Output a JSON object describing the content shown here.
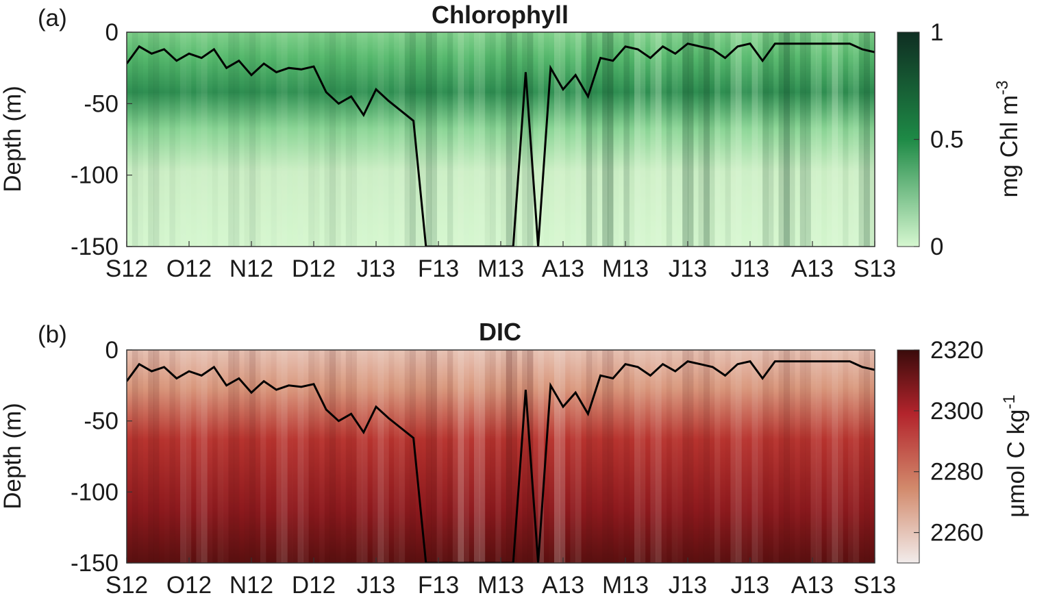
{
  "chart_data": [
    {
      "type": "heatmap",
      "panel_label": "(a)",
      "title": "Chlorophyll",
      "xlabel": "",
      "ylabel": "Depth (m)",
      "x_ticks": [
        "S12",
        "O12",
        "N12",
        "D12",
        "J13",
        "F13",
        "M13",
        "A13",
        "M13",
        "J13",
        "J13",
        "A13",
        "S13"
      ],
      "y_ticks": [
        "0",
        "-50",
        "-100",
        "-150"
      ],
      "ylim": [
        -150,
        0
      ],
      "colorbar": {
        "label": "mg Chl m",
        "label_superscript": "-3",
        "ticks": [
          "0",
          "0.5",
          "1"
        ],
        "range": [
          0,
          1
        ],
        "colors": [
          "#d6f7d0",
          "#1e8a46",
          "#0f2e22"
        ]
      },
      "mixed_layer_depth": {
        "months": [
          0,
          0.2,
          0.4,
          0.6,
          0.8,
          1.0,
          1.2,
          1.4,
          1.6,
          1.8,
          2.0,
          2.2,
          2.4,
          2.6,
          2.8,
          3.0,
          3.2,
          3.4,
          3.6,
          3.8,
          4.0,
          4.2,
          4.4,
          4.6,
          4.8,
          5.0,
          5.2,
          5.4,
          5.6,
          5.8,
          6.0,
          6.2,
          6.4,
          6.6,
          6.8,
          7.0,
          7.2,
          7.4,
          7.6,
          7.8,
          8.0,
          8.2,
          8.4,
          8.6,
          8.8,
          9.0,
          9.2,
          9.4,
          9.6,
          9.8,
          10.0,
          10.2,
          10.4,
          10.6,
          10.8,
          11.0,
          11.2,
          11.4,
          11.6,
          11.8,
          12.0
        ],
        "depth_m": [
          -22,
          -10,
          -15,
          -12,
          -20,
          -15,
          -18,
          -12,
          -25,
          -20,
          -30,
          -22,
          -28,
          -25,
          -26,
          -24,
          -42,
          -50,
          -45,
          -58,
          -40,
          -48,
          -55,
          -62,
          -150,
          -150,
          -150,
          -150,
          -150,
          -150,
          -150,
          -150,
          -28,
          -150,
          -25,
          -40,
          -30,
          -45,
          -18,
          -20,
          -10,
          -12,
          -18,
          -10,
          -15,
          -8,
          -10,
          -12,
          -18,
          -10,
          -8,
          -20,
          -8,
          -8,
          -8,
          -8,
          -8,
          -8,
          -8,
          -12,
          -14
        ]
      }
    },
    {
      "type": "heatmap",
      "panel_label": "(b)",
      "title": "DIC",
      "xlabel": "",
      "ylabel": "Depth (m)",
      "x_ticks": [
        "S12",
        "O12",
        "N12",
        "D12",
        "J13",
        "F13",
        "M13",
        "A13",
        "M13",
        "J13",
        "J13",
        "A13",
        "S13"
      ],
      "y_ticks": [
        "0",
        "-50",
        "-100",
        "-150"
      ],
      "ylim": [
        -150,
        0
      ],
      "colorbar": {
        "label": "μmol C kg",
        "label_superscript": "-1",
        "ticks": [
          "2260",
          "2280",
          "2300",
          "2320"
        ],
        "range": [
          2250,
          2320
        ],
        "colors": [
          "#f2eceb",
          "#d28a6c",
          "#b3242c",
          "#3a0b0b"
        ]
      },
      "mixed_layer_depth": {
        "months": [
          0,
          0.2,
          0.4,
          0.6,
          0.8,
          1.0,
          1.2,
          1.4,
          1.6,
          1.8,
          2.0,
          2.2,
          2.4,
          2.6,
          2.8,
          3.0,
          3.2,
          3.4,
          3.6,
          3.8,
          4.0,
          4.2,
          4.4,
          4.6,
          4.8,
          5.0,
          5.2,
          5.4,
          5.6,
          5.8,
          6.0,
          6.2,
          6.4,
          6.6,
          6.8,
          7.0,
          7.2,
          7.4,
          7.6,
          7.8,
          8.0,
          8.2,
          8.4,
          8.6,
          8.8,
          9.0,
          9.2,
          9.4,
          9.6,
          9.8,
          10.0,
          10.2,
          10.4,
          10.6,
          10.8,
          11.0,
          11.2,
          11.4,
          11.6,
          11.8,
          12.0
        ],
        "depth_m": [
          -22,
          -10,
          -15,
          -12,
          -20,
          -15,
          -18,
          -12,
          -25,
          -20,
          -30,
          -22,
          -28,
          -25,
          -26,
          -24,
          -42,
          -50,
          -45,
          -58,
          -40,
          -48,
          -55,
          -62,
          -150,
          -150,
          -150,
          -150,
          -150,
          -150,
          -150,
          -150,
          -28,
          -150,
          -25,
          -40,
          -30,
          -45,
          -18,
          -20,
          -10,
          -12,
          -18,
          -10,
          -15,
          -8,
          -10,
          -12,
          -18,
          -10,
          -8,
          -20,
          -8,
          -8,
          -8,
          -8,
          -8,
          -8,
          -8,
          -12,
          -14
        ]
      }
    }
  ]
}
